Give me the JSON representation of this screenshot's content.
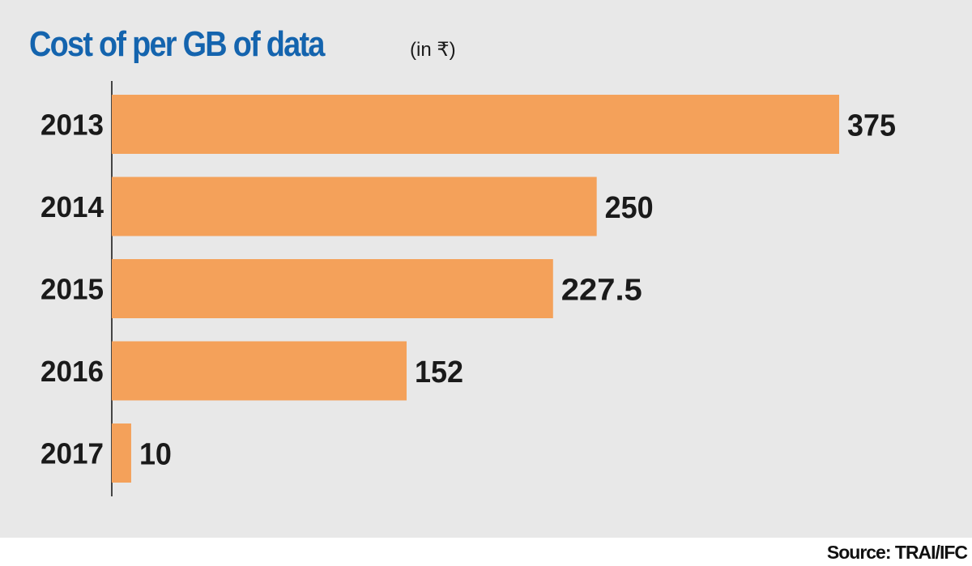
{
  "title": "Cost of per GB  of data",
  "unit": "(in ₹)",
  "source": "Source: TRAI/IFC",
  "colors": {
    "bar": "#f4a15a",
    "title": "#1464ae",
    "panel": "#e8e8e8",
    "axis": "#444444"
  },
  "chart_data": {
    "type": "bar",
    "orientation": "horizontal",
    "title": "Cost of per GB  of data",
    "xlabel": "",
    "ylabel": "",
    "unit": "(in ₹)",
    "categories": [
      "2013",
      "2014",
      "2015",
      "2016",
      "2017"
    ],
    "values": [
      375,
      250,
      227.5,
      152,
      10
    ],
    "value_labels": [
      "375",
      "250",
      "227.5",
      "152",
      "10"
    ],
    "xlim": [
      0,
      375
    ],
    "grid": false,
    "legend": "none"
  }
}
